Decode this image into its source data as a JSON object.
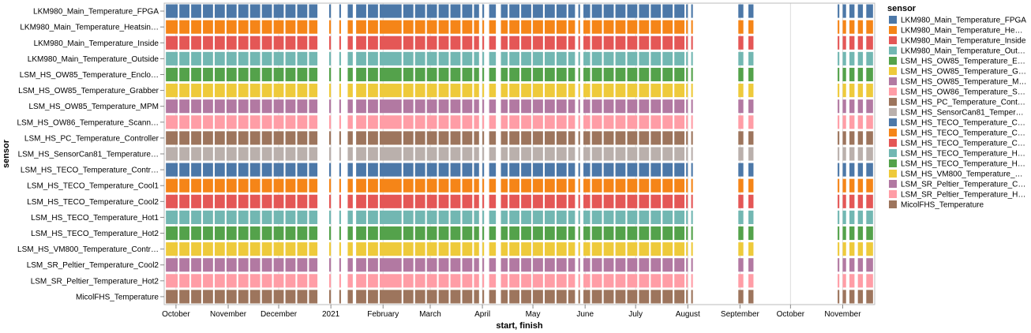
{
  "chart_data": {
    "type": "gantt",
    "x_title": "start, finish",
    "y_title": "sensor",
    "legend_title": "sensor",
    "x_range": [
      "2020-09-24",
      "2021-11-20"
    ],
    "x_ticks": [
      {
        "label": "October",
        "date": "2020-10-01"
      },
      {
        "label": "November",
        "date": "2020-11-01"
      },
      {
        "label": "December",
        "date": "2020-12-01"
      },
      {
        "label": "2021",
        "date": "2021-01-01"
      },
      {
        "label": "February",
        "date": "2021-02-01"
      },
      {
        "label": "March",
        "date": "2021-03-01"
      },
      {
        "label": "April",
        "date": "2021-04-01"
      },
      {
        "label": "May",
        "date": "2021-05-01"
      },
      {
        "label": "June",
        "date": "2021-06-01"
      },
      {
        "label": "July",
        "date": "2021-07-01"
      },
      {
        "label": "August",
        "date": "2021-08-01"
      },
      {
        "label": "September",
        "date": "2021-09-01"
      },
      {
        "label": "October",
        "date": "2021-10-01"
      },
      {
        "label": "November",
        "date": "2021-11-01"
      }
    ],
    "sensors": [
      {
        "label": "LKM980_Main_Temperature_FPGA",
        "legend": "LKM980_Main_Temperature_FPGA",
        "color": "#4c78a8"
      },
      {
        "label": "LKM980_Main_Temperature_Heatsin…",
        "legend": "LKM980_Main_Temperature_He…",
        "color": "#f58518"
      },
      {
        "label": "LKM980_Main_Temperature_Inside",
        "legend": "LKM980_Main_Temperature_Inside",
        "color": "#e45756"
      },
      {
        "label": "LKM980_Main_Temperature_Outside",
        "legend": "LKM980_Main_Temperature_Out…",
        "color": "#72b7b2"
      },
      {
        "label": "LSM_HS_OW85_Temperature_Enclo…",
        "legend": "LSM_HS_OW85_Temperature_E…",
        "color": "#54a24b"
      },
      {
        "label": "LSM_HS_OW85_Temperature_Grabber",
        "legend": "LSM_HS_OW85_Temperature_G…",
        "color": "#eeca3b"
      },
      {
        "label": "LSM_HS_OW85_Temperature_MPM",
        "legend": "LSM_HS_OW85_Temperature_M…",
        "color": "#b279a2"
      },
      {
        "label": "LSM_HS_OW86_Temperature_Scann…",
        "legend": "LSM_HS_OW86_Temperature_S…",
        "color": "#ff9da6"
      },
      {
        "label": "LSM_HS_PC_Temperature_Controller",
        "legend": "LSM_HS_PC_Temperature_Cont…",
        "color": "#9d755d"
      },
      {
        "label": "LSM_HS_SensorCan81_Temperature…",
        "legend": "LSM_HS_SensorCan81_Temper…",
        "color": "#bab0ac"
      },
      {
        "label": "LSM_HS_TECO_Temperature_Contr…",
        "legend": "LSM_HS_TECO_Temperature_C…",
        "color": "#4c78a8"
      },
      {
        "label": "LSM_HS_TECO_Temperature_Cool1",
        "legend": "LSM_HS_TECO_Temperature_C…",
        "color": "#f58518"
      },
      {
        "label": "LSM_HS_TECO_Temperature_Cool2",
        "legend": "LSM_HS_TECO_Temperature_C…",
        "color": "#e45756"
      },
      {
        "label": "LSM_HS_TECO_Temperature_Hot1",
        "legend": "LSM_HS_TECO_Temperature_H…",
        "color": "#72b7b2"
      },
      {
        "label": "LSM_HS_TECO_Temperature_Hot2",
        "legend": "LSM_HS_TECO_Temperature_H…",
        "color": "#54a24b"
      },
      {
        "label": "LSM_HS_VM800_Temperature_Contr…",
        "legend": "LSM_HS_VM800_Temperature_…",
        "color": "#eeca3b"
      },
      {
        "label": "LSM_SR_Peltier_Temperature_Cool2",
        "legend": "LSM_SR_Peltier_Temperature_C…",
        "color": "#b279a2"
      },
      {
        "label": "LSM_SR_Peltier_Temperature_Hot2",
        "legend": "LSM_SR_Peltier_Temperature_H…",
        "color": "#ff9da6"
      },
      {
        "label": "MicolFHS_Temperature",
        "legend": "MicolFHS_Temperature",
        "color": "#9d755d"
      }
    ],
    "intervals": [
      [
        "2020-09-25",
        "2020-10-02"
      ],
      [
        "2020-10-03",
        "2020-10-09"
      ],
      [
        "2020-10-10",
        "2020-10-16"
      ],
      [
        "2020-10-17",
        "2020-10-23"
      ],
      [
        "2020-10-24",
        "2020-10-30"
      ],
      [
        "2020-10-31",
        "2020-11-06"
      ],
      [
        "2020-11-07",
        "2020-11-13"
      ],
      [
        "2020-11-14",
        "2020-11-20"
      ],
      [
        "2020-11-21",
        "2020-11-27"
      ],
      [
        "2020-11-28",
        "2020-12-04"
      ],
      [
        "2020-12-05",
        "2020-12-11"
      ],
      [
        "2020-12-12",
        "2020-12-18"
      ],
      [
        "2020-12-19",
        "2020-12-24"
      ],
      [
        "2020-12-31",
        "2021-01-01"
      ],
      [
        "2021-01-06",
        "2021-01-07"
      ],
      [
        "2021-01-11",
        "2021-01-14"
      ],
      [
        "2021-01-16",
        "2021-01-22"
      ],
      [
        "2021-01-23",
        "2021-01-29"
      ],
      [
        "2021-01-30",
        "2021-02-12"
      ],
      [
        "2021-02-13",
        "2021-02-19"
      ],
      [
        "2021-02-20",
        "2021-02-26"
      ],
      [
        "2021-02-27",
        "2021-03-05"
      ],
      [
        "2021-03-06",
        "2021-03-12"
      ],
      [
        "2021-03-13",
        "2021-03-19"
      ],
      [
        "2021-03-20",
        "2021-03-26"
      ],
      [
        "2021-03-27",
        "2021-03-30"
      ],
      [
        "2021-04-01",
        "2021-04-02"
      ],
      [
        "2021-04-05",
        "2021-04-09"
      ],
      [
        "2021-04-12",
        "2021-04-16"
      ],
      [
        "2021-04-17",
        "2021-04-23"
      ],
      [
        "2021-04-24",
        "2021-04-30"
      ],
      [
        "2021-05-01",
        "2021-05-07"
      ],
      [
        "2021-05-08",
        "2021-05-14"
      ],
      [
        "2021-05-15",
        "2021-05-21"
      ],
      [
        "2021-05-22",
        "2021-05-26"
      ],
      [
        "2021-05-28",
        "2021-05-29"
      ],
      [
        "2021-05-31",
        "2021-06-04"
      ],
      [
        "2021-06-05",
        "2021-06-11"
      ],
      [
        "2021-06-12",
        "2021-06-18"
      ],
      [
        "2021-06-19",
        "2021-06-25"
      ],
      [
        "2021-06-26",
        "2021-07-02"
      ],
      [
        "2021-07-03",
        "2021-07-09"
      ],
      [
        "2021-07-10",
        "2021-07-16"
      ],
      [
        "2021-07-17",
        "2021-07-23"
      ],
      [
        "2021-07-24",
        "2021-07-30"
      ],
      [
        "2021-07-31",
        "2021-08-01"
      ],
      [
        "2021-08-03",
        "2021-08-04"
      ],
      [
        "2021-08-31",
        "2021-09-03"
      ],
      [
        "2021-09-06",
        "2021-09-09"
      ],
      [
        "2021-10-29",
        "2021-10-30"
      ],
      [
        "2021-11-01",
        "2021-11-03"
      ],
      [
        "2021-11-05",
        "2021-11-08"
      ],
      [
        "2021-11-10",
        "2021-11-13"
      ],
      [
        "2021-11-15",
        "2021-11-19"
      ]
    ]
  }
}
